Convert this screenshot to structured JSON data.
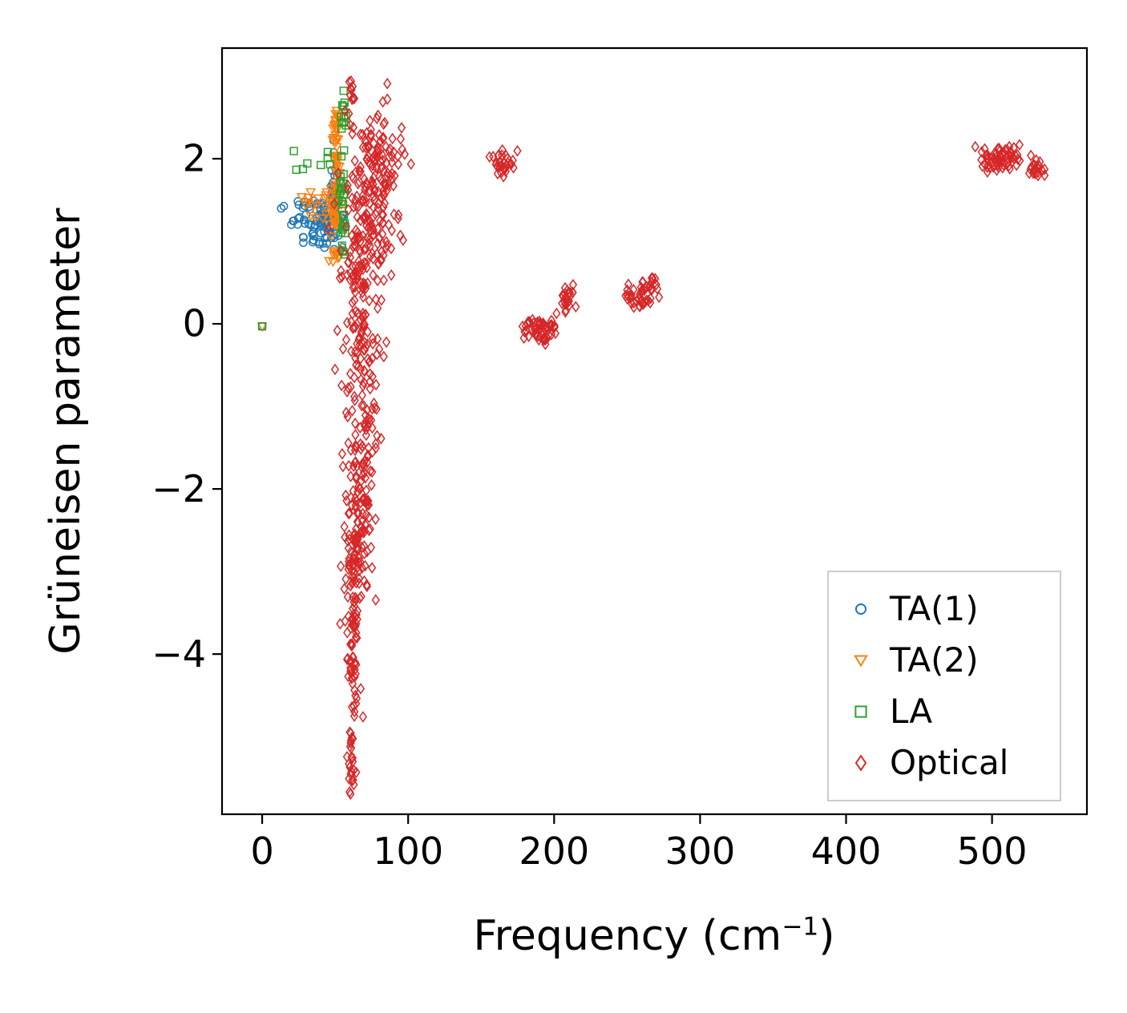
{
  "figure": {
    "xlabel_prefix": "Frequency (cm",
    "xlabel_sup": "−1",
    "xlabel_suffix": ")",
    "ylabel": "Grüneisen parameter"
  },
  "chart_data": {
    "type": "scatter",
    "title": "",
    "xlabel": "Frequency (cm⁻¹)",
    "ylabel": "Grüneisen parameter",
    "xlim": [
      -27.5,
      565
    ],
    "ylim": [
      -5.94,
      3.34
    ],
    "xticks": [
      0,
      100,
      200,
      300,
      400,
      500
    ],
    "yticks": [
      -4,
      -2,
      0,
      2
    ],
    "grid": false,
    "legend_position": "lower right",
    "seed": 12345,
    "axis_color": "#000000",
    "series": [
      {
        "name": "TA(1)",
        "color": "#1f77b4",
        "marker": "circle",
        "clusters": [
          {
            "type": "point",
            "x": 0,
            "y": -0.03
          },
          {
            "type": "rect",
            "x0": 13,
            "x1": 38,
            "y0": 1.18,
            "y1": 1.5,
            "n": 22
          },
          {
            "type": "gauss",
            "cx": 42,
            "cy": 1.2,
            "sx": 6,
            "sy": 0.14,
            "n": 55
          },
          {
            "type": "gauss",
            "cx": 49,
            "cy": 1.5,
            "sx": 2,
            "sy": 0.3,
            "n": 48
          },
          {
            "type": "rect",
            "x0": 28,
            "x1": 45,
            "y0": 0.92,
            "y1": 1.1,
            "n": 10
          }
        ]
      },
      {
        "name": "TA(2)",
        "color": "#ff7f0e",
        "marker": "triangle-down",
        "clusters": [
          {
            "type": "point",
            "x": 0,
            "y": -0.03
          },
          {
            "type": "rect",
            "x0": 26,
            "x1": 47,
            "y0": 1.2,
            "y1": 1.6,
            "n": 16
          },
          {
            "type": "gauss",
            "cx": 50,
            "cy": 1.65,
            "sx": 1.6,
            "sy": 0.4,
            "n": 60
          },
          {
            "type": "gauss",
            "cx": 51,
            "cy": 2.3,
            "sx": 1.1,
            "sy": 0.15,
            "n": 16
          },
          {
            "type": "gauss",
            "cx": 49,
            "cy": 0.85,
            "sx": 1.4,
            "sy": 0.07,
            "n": 8
          }
        ]
      },
      {
        "name": "LA",
        "color": "#2ca02c",
        "marker": "square",
        "clusters": [
          {
            "type": "point",
            "x": 0,
            "y": -0.03
          },
          {
            "type": "rect",
            "x0": 20,
            "x1": 47,
            "y0": 1.85,
            "y1": 2.12,
            "n": 8
          },
          {
            "type": "gauss",
            "cx": 55,
            "cy": 1.6,
            "sx": 1.2,
            "sy": 0.5,
            "n": 34
          },
          {
            "type": "gauss",
            "cx": 56,
            "cy": 2.55,
            "sx": 0.9,
            "sy": 0.1,
            "n": 8
          }
        ]
      },
      {
        "name": "Optical",
        "color": "#d62728",
        "marker": "diamond",
        "clusters": [
          {
            "type": "gauss",
            "cx": 78,
            "cy": 2.0,
            "sx": 9,
            "sy": 0.3,
            "n": 110
          },
          {
            "type": "gauss",
            "cx": 74,
            "cy": 1.25,
            "sx": 10,
            "sy": 0.3,
            "n": 80
          },
          {
            "type": "gauss",
            "cx": 70,
            "cy": 0.55,
            "sx": 8,
            "sy": 0.35,
            "n": 80
          },
          {
            "type": "gauss",
            "cx": 68,
            "cy": -0.35,
            "sx": 6,
            "sy": 0.45,
            "n": 60
          },
          {
            "type": "gauss",
            "cx": 68,
            "cy": -1.5,
            "sx": 6,
            "sy": 0.55,
            "n": 80
          },
          {
            "type": "gauss",
            "cx": 66,
            "cy": -2.5,
            "sx": 5,
            "sy": 0.5,
            "n": 90
          },
          {
            "type": "gauss",
            "cx": 63,
            "cy": -3.4,
            "sx": 3,
            "sy": 0.45,
            "n": 45
          },
          {
            "type": "gauss",
            "cx": 62,
            "cy": -4.3,
            "sx": 2,
            "sy": 0.5,
            "n": 35
          },
          {
            "type": "gauss",
            "cx": 61,
            "cy": -5.2,
            "sx": 1.5,
            "sy": 0.3,
            "n": 25
          },
          {
            "type": "gauss",
            "cx": 61,
            "cy": 2.75,
            "sx": 1.5,
            "sy": 0.18,
            "n": 14
          },
          {
            "type": "gauss",
            "cx": 164,
            "cy": 1.95,
            "sx": 4,
            "sy": 0.08,
            "n": 30
          },
          {
            "type": "gauss",
            "cx": 190,
            "cy": -0.07,
            "sx": 6,
            "sy": 0.1,
            "n": 55
          },
          {
            "type": "gauss",
            "cx": 208,
            "cy": 0.3,
            "sx": 4,
            "sy": 0.09,
            "n": 25
          },
          {
            "type": "gauss",
            "cx": 257,
            "cy": 0.33,
            "sx": 6,
            "sy": 0.1,
            "n": 40
          },
          {
            "type": "gauss",
            "cx": 266,
            "cy": 0.5,
            "sx": 2,
            "sy": 0.06,
            "n": 8
          },
          {
            "type": "gauss",
            "cx": 506,
            "cy": 2.02,
            "sx": 6,
            "sy": 0.09,
            "n": 55
          },
          {
            "type": "gauss",
            "cx": 496,
            "cy": 1.97,
            "sx": 3,
            "sy": 0.05,
            "n": 10
          },
          {
            "type": "gauss",
            "cx": 531,
            "cy": 1.88,
            "sx": 4,
            "sy": 0.06,
            "n": 22
          }
        ]
      }
    ]
  }
}
